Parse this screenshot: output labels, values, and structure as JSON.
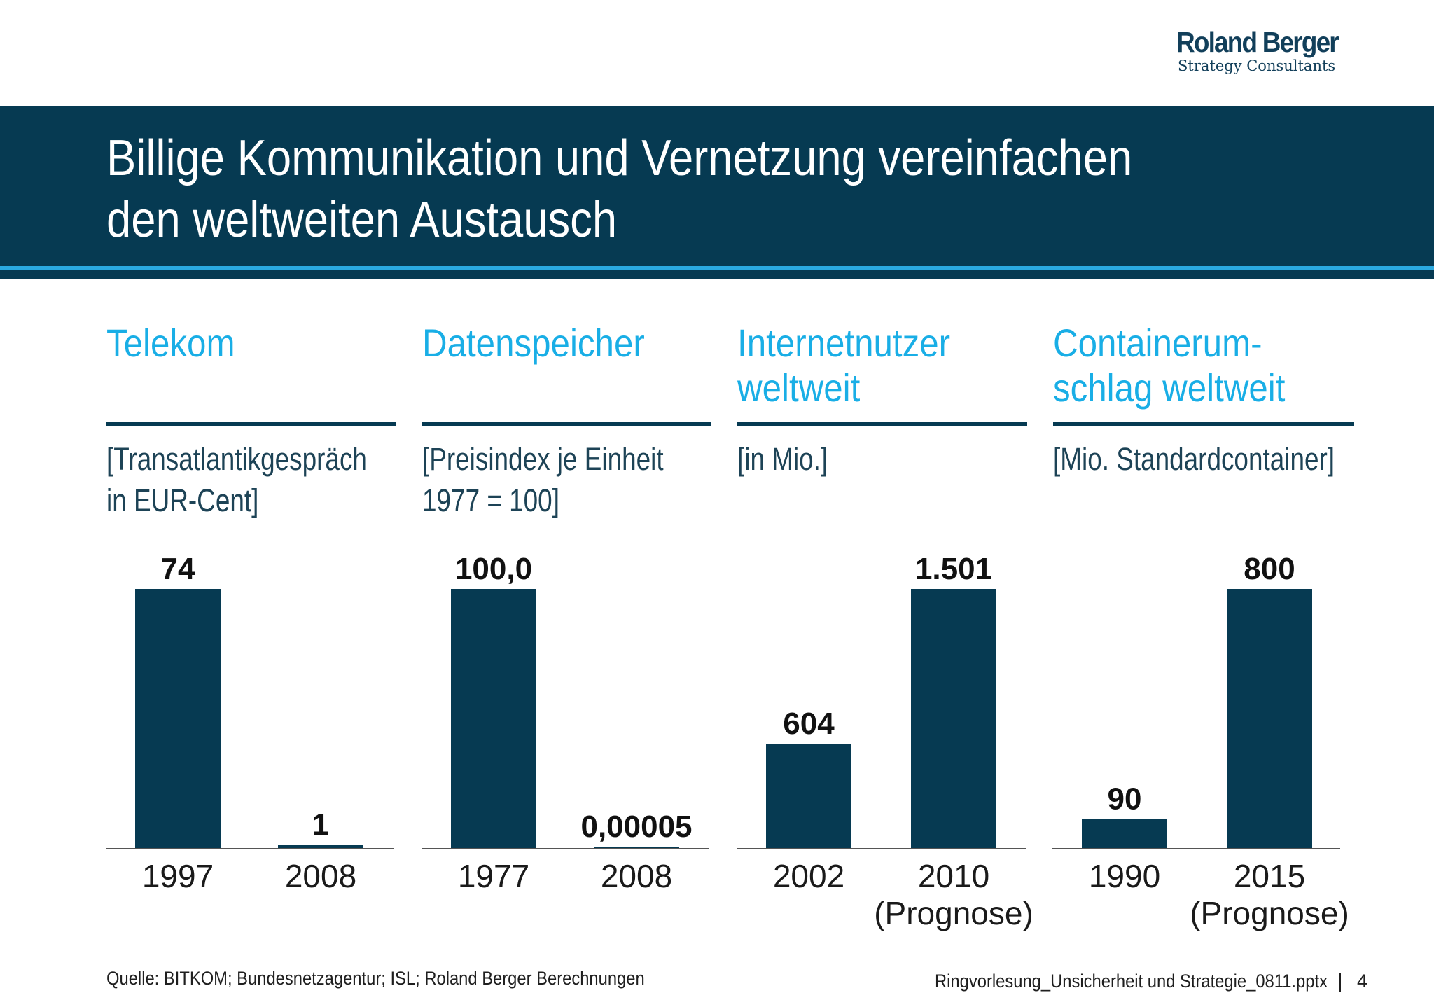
{
  "logo": {
    "name": "Roland Berger",
    "tagline": "Strategy Consultants"
  },
  "title": {
    "line1": "Billige Kommunikation und Vernetzung vereinfachen",
    "line2": "den weltweiten Austausch"
  },
  "panels": [
    {
      "title_lines": [
        "Telekom"
      ],
      "subtitle_lines": [
        "[Transatlantikgespräch",
        "in EUR-Cent]"
      ]
    },
    {
      "title_lines": [
        "Datenspeicher"
      ],
      "subtitle_lines": [
        "[Preisindex je Einheit",
        "1977 = 100]"
      ]
    },
    {
      "title_lines": [
        "Internetnutzer",
        "weltweit"
      ],
      "subtitle_lines": [
        "[in Mio.]"
      ]
    },
    {
      "title_lines": [
        "Containerum-",
        "schlag weltweit"
      ],
      "subtitle_lines": [
        "[Mio. Standardcontainer]"
      ]
    }
  ],
  "colors": {
    "bar": "#063a52",
    "accent": "#19aee6",
    "header": "#063a52",
    "axis": "#555555"
  },
  "chart_data": [
    {
      "type": "bar",
      "title": "Telekom",
      "unit": "[Transatlantikgespräch in EUR-Cent]",
      "categories": [
        [
          "1997"
        ],
        [
          "2008"
        ]
      ],
      "values": [
        74,
        1
      ],
      "value_labels": [
        "74",
        "1"
      ],
      "ylim": [
        0,
        74
      ]
    },
    {
      "type": "bar",
      "title": "Datenspeicher",
      "unit": "[Preisindex je Einheit 1977 = 100]",
      "categories": [
        [
          "1977"
        ],
        [
          "2008"
        ]
      ],
      "values": [
        100.0,
        5e-05
      ],
      "value_labels": [
        "100,0",
        "0,00005"
      ],
      "ylim": [
        0,
        100
      ]
    },
    {
      "type": "bar",
      "title": "Internetnutzer weltweit",
      "unit": "[in Mio.]",
      "categories": [
        [
          "2002"
        ],
        [
          "2010",
          "(Prognose)"
        ]
      ],
      "values": [
        604,
        1501
      ],
      "value_labels": [
        "604",
        "1.501"
      ],
      "ylim": [
        0,
        1501
      ]
    },
    {
      "type": "bar",
      "title": "Containerumschlag weltweit",
      "unit": "[Mio. Standardcontainer]",
      "categories": [
        [
          "1990"
        ],
        [
          "2015",
          "(Prognose)"
        ]
      ],
      "values": [
        90,
        800
      ],
      "value_labels": [
        "90",
        "800"
      ],
      "ylim": [
        0,
        800
      ]
    }
  ],
  "footer": {
    "source": "Quelle: BITKOM; Bundesnetzagentur; ISL; Roland Berger Berechnungen",
    "file": "Ringvorlesung_Unsicherheit und Strategie_0811.pptx",
    "page": "4"
  }
}
